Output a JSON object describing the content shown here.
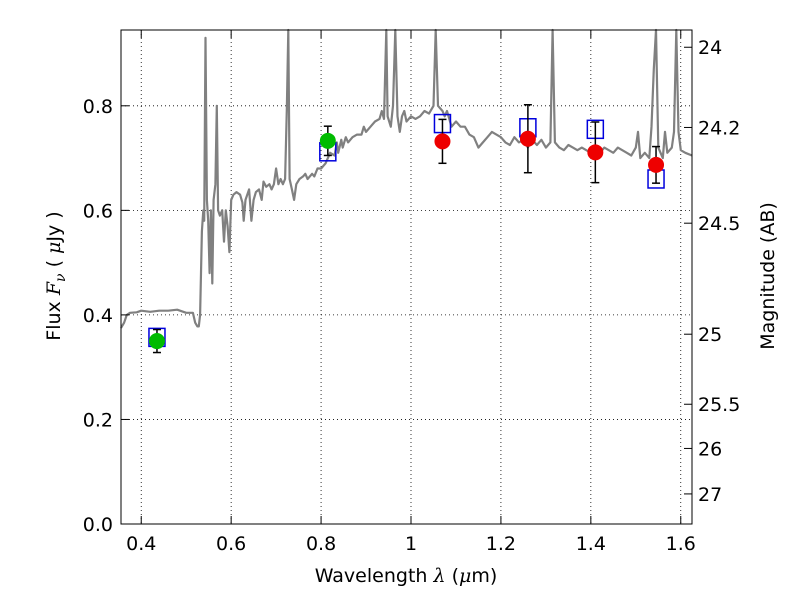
{
  "chart_data": {
    "type": "scatter",
    "title": "",
    "xlabel": {
      "text": "Wavelength",
      "symbol": "λ",
      "unit_open": " (",
      "unit_mu": "μ",
      "unit_rest": "m)"
    },
    "ylabel": {
      "text": "Flux",
      "symbol": "F",
      "subscript": "ν",
      "unit_open": " ( ",
      "unit_mu": "μ",
      "unit_rest": "Jy )"
    },
    "y2label": "Magnitude (AB)",
    "xlim": [
      0.355,
      1.625
    ],
    "ylim": [
      0.0,
      0.945
    ],
    "xticks": [
      0.4,
      0.6,
      0.8,
      1.0,
      1.2,
      1.4,
      1.6
    ],
    "xtick_labels": [
      "0.4",
      "0.6",
      "0.8",
      "1",
      "1.2",
      "1.4",
      "1.6"
    ],
    "yticks": [
      0.0,
      0.2,
      0.4,
      0.6,
      0.8
    ],
    "ytick_labels": [
      "0.0",
      "0.2",
      "0.4",
      "0.6",
      "0.8"
    ],
    "y2ticks": [
      24,
      24.2,
      24.5,
      25,
      25.5,
      26,
      27
    ],
    "y2tick_labels": [
      "24",
      "24.2",
      "24.5",
      "25",
      "25.5",
      "26",
      "27"
    ],
    "grid": true,
    "colors": {
      "model": "#808080",
      "green": "#00bb00",
      "red": "#ee0000",
      "blue": "#0000dd",
      "errorbar": "#000000"
    },
    "series": [
      {
        "name": "model_spectrum",
        "kind": "line",
        "points": [
          [
            0.355,
            0.375
          ],
          [
            0.362,
            0.385
          ],
          [
            0.368,
            0.4
          ],
          [
            0.375,
            0.404
          ],
          [
            0.39,
            0.405
          ],
          [
            0.4,
            0.408
          ],
          [
            0.42,
            0.406
          ],
          [
            0.44,
            0.408
          ],
          [
            0.46,
            0.408
          ],
          [
            0.48,
            0.41
          ],
          [
            0.5,
            0.404
          ],
          [
            0.515,
            0.404
          ],
          [
            0.52,
            0.385
          ],
          [
            0.525,
            0.378
          ],
          [
            0.528,
            0.378
          ],
          [
            0.531,
            0.4
          ],
          [
            0.533,
            0.48
          ],
          [
            0.535,
            0.56
          ],
          [
            0.538,
            0.6
          ],
          [
            0.54,
            0.58
          ],
          [
            0.543,
            0.93
          ],
          [
            0.546,
            0.62
          ],
          [
            0.549,
            0.58
          ],
          [
            0.552,
            0.48
          ],
          [
            0.555,
            0.6
          ],
          [
            0.558,
            0.46
          ],
          [
            0.561,
            0.62
          ],
          [
            0.565,
            0.65
          ],
          [
            0.568,
            0.8
          ],
          [
            0.571,
            0.6
          ],
          [
            0.575,
            0.59
          ],
          [
            0.58,
            0.6
          ],
          [
            0.584,
            0.54
          ],
          [
            0.588,
            0.6
          ],
          [
            0.592,
            0.57
          ],
          [
            0.596,
            0.52
          ],
          [
            0.6,
            0.62
          ],
          [
            0.605,
            0.63
          ],
          [
            0.612,
            0.635
          ],
          [
            0.62,
            0.63
          ],
          [
            0.625,
            0.615
          ],
          [
            0.628,
            0.58
          ],
          [
            0.632,
            0.62
          ],
          [
            0.64,
            0.64
          ],
          [
            0.645,
            0.58
          ],
          [
            0.65,
            0.62
          ],
          [
            0.655,
            0.635
          ],
          [
            0.662,
            0.64
          ],
          [
            0.668,
            0.62
          ],
          [
            0.672,
            0.655
          ],
          [
            0.678,
            0.645
          ],
          [
            0.685,
            0.65
          ],
          [
            0.69,
            0.64
          ],
          [
            0.695,
            0.65
          ],
          [
            0.7,
            0.68
          ],
          [
            0.705,
            0.65
          ],
          [
            0.71,
            0.66
          ],
          [
            0.715,
            0.65
          ],
          [
            0.72,
            0.66
          ],
          [
            0.724,
            0.8
          ],
          [
            0.727,
            0.945
          ],
          [
            0.73,
            0.66
          ],
          [
            0.735,
            0.64
          ],
          [
            0.74,
            0.62
          ],
          [
            0.745,
            0.65
          ],
          [
            0.752,
            0.66
          ],
          [
            0.76,
            0.665
          ],
          [
            0.765,
            0.67
          ],
          [
            0.77,
            0.66
          ],
          [
            0.78,
            0.67
          ],
          [
            0.785,
            0.665
          ],
          [
            0.792,
            0.68
          ],
          [
            0.8,
            0.68
          ],
          [
            0.81,
            0.69
          ],
          [
            0.82,
            0.71
          ],
          [
            0.83,
            0.705
          ],
          [
            0.835,
            0.73
          ],
          [
            0.838,
            0.71
          ],
          [
            0.845,
            0.735
          ],
          [
            0.848,
            0.72
          ],
          [
            0.855,
            0.74
          ],
          [
            0.86,
            0.73
          ],
          [
            0.87,
            0.74
          ],
          [
            0.88,
            0.745
          ],
          [
            0.89,
            0.745
          ],
          [
            0.895,
            0.76
          ],
          [
            0.9,
            0.75
          ],
          [
            0.91,
            0.76
          ],
          [
            0.92,
            0.77
          ],
          [
            0.93,
            0.775
          ],
          [
            0.935,
            0.79
          ],
          [
            0.94,
            0.775
          ],
          [
            0.945,
            0.945
          ],
          [
            0.948,
            0.78
          ],
          [
            0.955,
            0.76
          ],
          [
            0.96,
            0.8
          ],
          [
            0.965,
            0.945
          ],
          [
            0.97,
            0.78
          ],
          [
            0.975,
            0.75
          ],
          [
            0.98,
            0.78
          ],
          [
            0.985,
            0.79
          ],
          [
            0.99,
            0.77
          ],
          [
            1.0,
            0.78
          ],
          [
            1.01,
            0.775
          ],
          [
            1.02,
            0.78
          ],
          [
            1.03,
            0.79
          ],
          [
            1.04,
            0.785
          ],
          [
            1.05,
            0.8
          ],
          [
            1.055,
            0.945
          ],
          [
            1.06,
            0.8
          ],
          [
            1.07,
            0.79
          ],
          [
            1.075,
            0.78
          ],
          [
            1.08,
            0.79
          ],
          [
            1.09,
            0.76
          ],
          [
            1.1,
            0.77
          ],
          [
            1.11,
            0.76
          ],
          [
            1.12,
            0.76
          ],
          [
            1.13,
            0.745
          ],
          [
            1.14,
            0.74
          ],
          [
            1.15,
            0.72
          ],
          [
            1.16,
            0.73
          ],
          [
            1.17,
            0.74
          ],
          [
            1.18,
            0.75
          ],
          [
            1.19,
            0.745
          ],
          [
            1.2,
            0.74
          ],
          [
            1.21,
            0.73
          ],
          [
            1.22,
            0.725
          ],
          [
            1.23,
            0.74
          ],
          [
            1.24,
            0.73
          ],
          [
            1.25,
            0.735
          ],
          [
            1.26,
            0.72
          ],
          [
            1.27,
            0.74
          ],
          [
            1.275,
            0.73
          ],
          [
            1.28,
            0.725
          ],
          [
            1.29,
            0.735
          ],
          [
            1.3,
            0.72
          ],
          [
            1.31,
            0.73
          ],
          [
            1.315,
            0.945
          ],
          [
            1.32,
            0.73
          ],
          [
            1.33,
            0.72
          ],
          [
            1.34,
            0.715
          ],
          [
            1.35,
            0.725
          ],
          [
            1.36,
            0.72
          ],
          [
            1.37,
            0.715
          ],
          [
            1.38,
            0.72
          ],
          [
            1.39,
            0.715
          ],
          [
            1.4,
            0.71
          ],
          [
            1.41,
            0.72
          ],
          [
            1.42,
            0.71
          ],
          [
            1.43,
            0.72
          ],
          [
            1.44,
            0.715
          ],
          [
            1.45,
            0.71
          ],
          [
            1.46,
            0.72
          ],
          [
            1.47,
            0.715
          ],
          [
            1.48,
            0.71
          ],
          [
            1.49,
            0.705
          ],
          [
            1.5,
            0.72
          ],
          [
            1.505,
            0.75
          ],
          [
            1.51,
            0.7
          ],
          [
            1.52,
            0.71
          ],
          [
            1.53,
            0.7
          ],
          [
            1.535,
            0.76
          ],
          [
            1.54,
            0.87
          ],
          [
            1.545,
            0.945
          ],
          [
            1.55,
            0.72
          ],
          [
            1.56,
            0.7
          ],
          [
            1.565,
            0.75
          ],
          [
            1.57,
            0.71
          ],
          [
            1.58,
            0.72
          ],
          [
            1.585,
            0.75
          ],
          [
            1.59,
            0.945
          ],
          [
            1.595,
            0.75
          ],
          [
            1.6,
            0.715
          ],
          [
            1.61,
            0.71
          ],
          [
            1.625,
            0.705
          ]
        ]
      },
      {
        "name": "green_points",
        "kind": "scatter",
        "marker": "circle",
        "x": [
          0.435,
          0.815
        ],
        "y": [
          0.35,
          0.733
        ],
        "yerr": [
          0.022,
          0.028
        ]
      },
      {
        "name": "red_points",
        "kind": "scatter",
        "marker": "circle",
        "x": [
          1.07,
          1.26,
          1.41,
          1.545
        ],
        "y": [
          0.732,
          0.737,
          0.711,
          0.687
        ],
        "yerr": [
          0.042,
          0.065,
          0.058,
          0.035
        ]
      },
      {
        "name": "blue_squares",
        "kind": "scatter",
        "marker": "square",
        "x": [
          0.435,
          0.815,
          1.07,
          1.26,
          1.41,
          1.545
        ],
        "y": [
          0.357,
          0.712,
          0.766,
          0.758,
          0.755,
          0.66
        ]
      }
    ]
  }
}
